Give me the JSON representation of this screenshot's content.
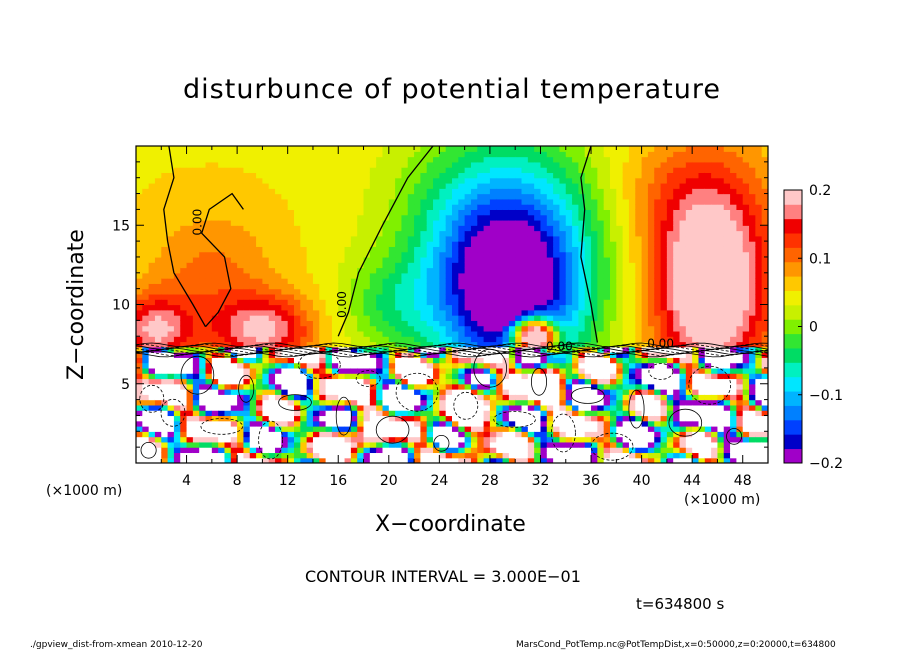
{
  "title": "disturbunce of potential temperature",
  "xlabel": "X−coordinate",
  "ylabel": "Z−coordinate",
  "x_unit_left": "(×1000 m)",
  "x_unit_right": "(×1000 m)",
  "contour_note": "CONTOUR INTERVAL = 3.000E−01",
  "time_label": "t=634800 s",
  "footer_left": "./gpview_dist-from-xmean  2010-12-20",
  "footer_right": "MarsCond_PotTemp.nc@PotTempDist,x=0:50000,z=0:20000,t=634800",
  "contour_labels": [
    "0.00",
    "0.00",
    "0.00",
    "0.00"
  ],
  "chart_data": {
    "type": "heatmap",
    "title": "disturbunce of potential temperature",
    "xlabel": "X−coordinate",
    "ylabel": "Z−coordinate",
    "xlim": [
      0,
      50
    ],
    "ylim": [
      0,
      20
    ],
    "x_ticks": [
      "4",
      "8",
      "12",
      "16",
      "20",
      "24",
      "28",
      "32",
      "36",
      "40",
      "44",
      "48"
    ],
    "x_tick_values": [
      4,
      8,
      12,
      16,
      20,
      24,
      28,
      32,
      36,
      40,
      44,
      48
    ],
    "y_ticks": [
      "5",
      "10",
      "15"
    ],
    "y_tick_values": [
      5,
      10,
      15
    ],
    "colorbar": {
      "range": [
        -0.2,
        0.2
      ],
      "tick_labels": [
        "0.2",
        "0.1",
        "0",
        "−0.1",
        "−0.2"
      ],
      "tick_values": [
        0.2,
        0.1,
        0,
        -0.1,
        -0.2
      ],
      "colors": [
        "#a000c8",
        "#0000c8",
        "#0040ff",
        "#0080ff",
        "#00b4ff",
        "#00e6ff",
        "#00f0c0",
        "#00dc64",
        "#32e632",
        "#80f000",
        "#c8f000",
        "#f0f000",
        "#ffc800",
        "#ff9600",
        "#ff6400",
        "#ff3200",
        "#f00000",
        "#ff8080",
        "#ffc8c8"
      ]
    },
    "contour_interval": 0.3,
    "time": "634800 s"
  }
}
